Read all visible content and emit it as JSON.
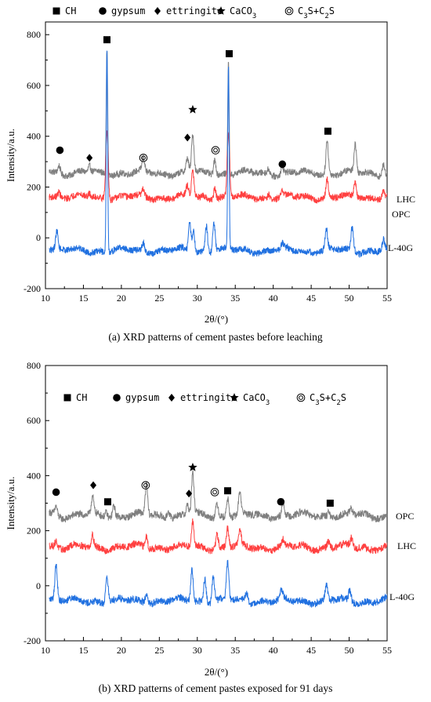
{
  "chart_data": [
    {
      "type": "line",
      "caption": "(a) XRD patterns of cement pastes before leaching",
      "xlabel": "2θ/(°)",
      "ylabel": "Intensity/a.u.",
      "xlim": [
        10,
        55
      ],
      "ylim": [
        -200,
        850
      ],
      "xticks": [
        10,
        15,
        20,
        25,
        30,
        35,
        40,
        45,
        50,
        55
      ],
      "yticks": [
        -200,
        0,
        200,
        400,
        600,
        800
      ],
      "legend": {
        "placement": "top",
        "entries": [
          {
            "symbol": "square",
            "label": "CH"
          },
          {
            "symbol": "circle",
            "label": "gypsum"
          },
          {
            "symbol": "diamond",
            "label": "ettringite"
          },
          {
            "symbol": "star",
            "label": "CaCO₃"
          },
          {
            "symbol": "double-circle",
            "label": "C₃S+C₂S"
          }
        ]
      },
      "series": [
        {
          "name": "OPC",
          "color": "#7f7f7f",
          "baseline": 255,
          "peaks": [
            [
              11.8,
              30
            ],
            [
              15.8,
              25
            ],
            [
              18.1,
              500
            ],
            [
              22.9,
              50
            ],
            [
              28.7,
              55
            ],
            [
              29.4,
              150
            ],
            [
              32.3,
              60
            ],
            [
              34.1,
              440
            ],
            [
              39.4,
              20
            ],
            [
              41.2,
              25
            ],
            [
              47.1,
              130
            ],
            [
              50.8,
              110
            ],
            [
              54.5,
              40
            ]
          ]
        },
        {
          "name": "LHC",
          "color": "#ff4040",
          "baseline": 160,
          "peaks": [
            [
              11.8,
              20
            ],
            [
              15.8,
              15
            ],
            [
              18.1,
              270
            ],
            [
              22.9,
              25
            ],
            [
              28.7,
              40
            ],
            [
              29.4,
              110
            ],
            [
              32.3,
              45
            ],
            [
              34.1,
              250
            ],
            [
              39.4,
              15
            ],
            [
              41.2,
              20
            ],
            [
              47.1,
              70
            ],
            [
              50.8,
              55
            ],
            [
              54.5,
              25
            ]
          ]
        },
        {
          "name": "L-40G",
          "color": "#2070e0",
          "baseline": -50,
          "peaks": [
            [
              11.5,
              70
            ],
            [
              18.1,
              800
            ],
            [
              22.9,
              30
            ],
            [
              29.0,
              110
            ],
            [
              29.5,
              80
            ],
            [
              31.2,
              100
            ],
            [
              32.2,
              120
            ],
            [
              34.1,
              720
            ],
            [
              41.2,
              20
            ],
            [
              47.0,
              80
            ],
            [
              50.4,
              90
            ],
            [
              54.5,
              40
            ]
          ]
        }
      ],
      "markers": [
        {
          "symbol": "square",
          "x": 18.1,
          "y": 780
        },
        {
          "symbol": "square",
          "x": 34.2,
          "y": 725
        },
        {
          "symbol": "square",
          "x": 47.2,
          "y": 420
        },
        {
          "symbol": "circle",
          "x": 11.9,
          "y": 345
        },
        {
          "symbol": "circle",
          "x": 41.2,
          "y": 290
        },
        {
          "symbol": "diamond",
          "x": 15.8,
          "y": 315
        },
        {
          "symbol": "diamond",
          "x": 28.7,
          "y": 395
        },
        {
          "symbol": "star",
          "x": 29.4,
          "y": 505
        },
        {
          "symbol": "double-circle",
          "x": 22.9,
          "y": 315
        },
        {
          "symbol": "double-circle",
          "x": 32.4,
          "y": 345
        }
      ]
    },
    {
      "type": "line",
      "caption": "(b) XRD patterns of cement pastes exposed for 91 days",
      "xlabel": "2θ/(°)",
      "ylabel": "Intensity/a.u.",
      "xlim": [
        10,
        55
      ],
      "ylim": [
        -200,
        800
      ],
      "xticks": [
        10,
        15,
        20,
        25,
        30,
        35,
        40,
        45,
        50,
        55
      ],
      "yticks": [
        -200,
        0,
        200,
        400,
        600,
        800
      ],
      "legend": {
        "placement": "top",
        "entries": [
          {
            "symbol": "square",
            "label": "CH"
          },
          {
            "symbol": "circle",
            "label": "gypsum"
          },
          {
            "symbol": "diamond",
            "label": "ettringite"
          },
          {
            "symbol": "star",
            "label": "CaCO₃"
          },
          {
            "symbol": "double-circle",
            "label": "C₃S+C₂S"
          }
        ]
      },
      "series": [
        {
          "name": "OPC",
          "color": "#7f7f7f",
          "baseline": 255,
          "peaks": [
            [
              11.4,
              30
            ],
            [
              16.2,
              60
            ],
            [
              18.0,
              20
            ],
            [
              19.0,
              40
            ],
            [
              23.3,
              110
            ],
            [
              26.2,
              30
            ],
            [
              28.7,
              40
            ],
            [
              29.4,
              150
            ],
            [
              32.6,
              50
            ],
            [
              34.0,
              70
            ],
            [
              35.6,
              80
            ],
            [
              41.3,
              50
            ],
            [
              47.3,
              20
            ],
            [
              50.3,
              20
            ]
          ]
        },
        {
          "name": "LHC",
          "color": "#ff4040",
          "baseline": 140,
          "peaks": [
            [
              11.4,
              20
            ],
            [
              16.2,
              40
            ],
            [
              23.3,
              45
            ],
            [
              29.4,
              90
            ],
            [
              32.6,
              50
            ],
            [
              34.0,
              70
            ],
            [
              35.6,
              50
            ],
            [
              41.3,
              20
            ],
            [
              47.3,
              25
            ],
            [
              50.3,
              30
            ]
          ]
        },
        {
          "name": "L-40G",
          "color": "#2070e0",
          "baseline": -55,
          "peaks": [
            [
              11.4,
              125
            ],
            [
              18.1,
              100
            ],
            [
              23.3,
              30
            ],
            [
              29.3,
              120
            ],
            [
              31.0,
              90
            ],
            [
              32.1,
              100
            ],
            [
              34.0,
              140
            ],
            [
              36.5,
              30
            ],
            [
              41.1,
              30
            ],
            [
              47.0,
              50
            ],
            [
              50.1,
              40
            ]
          ]
        }
      ],
      "markers": [
        {
          "symbol": "circle",
          "x": 11.4,
          "y": 340
        },
        {
          "symbol": "diamond",
          "x": 16.3,
          "y": 365
        },
        {
          "symbol": "square",
          "x": 18.2,
          "y": 305
        },
        {
          "symbol": "double-circle",
          "x": 23.2,
          "y": 365
        },
        {
          "symbol": "diamond",
          "x": 28.9,
          "y": 335
        },
        {
          "symbol": "star",
          "x": 29.4,
          "y": 430
        },
        {
          "symbol": "double-circle",
          "x": 32.3,
          "y": 340
        },
        {
          "symbol": "square",
          "x": 34.0,
          "y": 345
        },
        {
          "symbol": "circle",
          "x": 41.0,
          "y": 305
        },
        {
          "symbol": "square",
          "x": 47.5,
          "y": 300
        }
      ]
    }
  ]
}
